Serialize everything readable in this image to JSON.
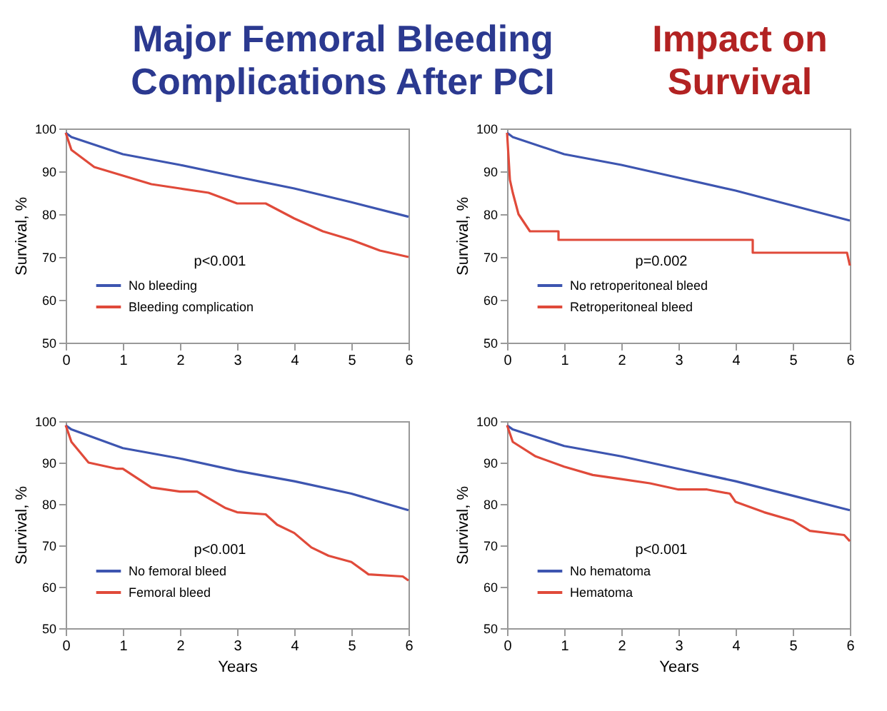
{
  "chart_data": [
    {
      "type": "line",
      "title": "Major Femoral Bleeding Complications After PCI",
      "ylabel": "Survival, %",
      "xlim": [
        0,
        6
      ],
      "xticks": [
        0,
        1,
        2,
        3,
        4,
        5,
        6
      ],
      "ylim": [
        50,
        100
      ],
      "yticks": [
        50,
        60,
        70,
        80,
        90,
        100
      ],
      "legend": "bottom left",
      "annotations": [
        "p<0.001"
      ],
      "series": [
        {
          "name": "No bleeding",
          "color": "#3d55b0",
          "x": [
            0,
            0.1,
            1,
            2,
            3,
            4,
            5,
            6
          ],
          "values": [
            99,
            98,
            94,
            91.5,
            88.7,
            86,
            82.8,
            79.4
          ]
        },
        {
          "name": "Bleeding complication",
          "color": "#e04a3a",
          "x": [
            0,
            0.1,
            0.5,
            1,
            1.5,
            2,
            2.5,
            3,
            3.5,
            4,
            4.5,
            5,
            5.5,
            6
          ],
          "values": [
            99,
            95,
            91,
            89,
            87,
            86,
            85,
            82.5,
            82.5,
            79,
            76,
            74,
            71.5,
            70
          ]
        }
      ]
    },
    {
      "type": "line",
      "title": "Impact on Survival",
      "ylabel": "Survival, %",
      "xlim": [
        0,
        6
      ],
      "xticks": [
        0,
        1,
        2,
        3,
        4,
        5,
        6
      ],
      "ylim": [
        50,
        100
      ],
      "yticks": [
        50,
        60,
        70,
        80,
        90,
        100
      ],
      "legend": "bottom left",
      "annotations": [
        "p=0.002"
      ],
      "series": [
        {
          "name": "No retroperitoneal bleed",
          "color": "#3d55b0",
          "x": [
            0,
            0.1,
            1,
            2,
            3,
            4,
            5,
            6
          ],
          "values": [
            99,
            98,
            94,
            91.5,
            88.5,
            85.5,
            82,
            78.5
          ]
        },
        {
          "name": "Retroperitoneal bleed",
          "color": "#e04a3a",
          "x": [
            0,
            0.05,
            0.1,
            0.2,
            0.4,
            0.9,
            0.9,
            4.3,
            4.3,
            5.95,
            6
          ],
          "values": [
            99,
            88,
            85,
            80,
            76,
            76,
            74,
            74,
            71,
            71,
            68
          ]
        }
      ]
    },
    {
      "type": "line",
      "xlabel": "Years",
      "ylabel": "Survival, %",
      "xlim": [
        0,
        6
      ],
      "xticks": [
        0,
        1,
        2,
        3,
        4,
        5,
        6
      ],
      "ylim": [
        50,
        100
      ],
      "yticks": [
        50,
        60,
        70,
        80,
        90,
        100
      ],
      "legend": "bottom left",
      "annotations": [
        "p<0.001"
      ],
      "series": [
        {
          "name": "No femoral bleed",
          "color": "#3d55b0",
          "x": [
            0,
            0.1,
            1,
            2,
            3,
            4,
            5,
            6
          ],
          "values": [
            99,
            98,
            93.5,
            91,
            88,
            85.5,
            82.5,
            78.5
          ]
        },
        {
          "name": "Femoral bleed",
          "color": "#e04a3a",
          "x": [
            0,
            0.1,
            0.4,
            0.9,
            1,
            1.5,
            2,
            2.3,
            2.8,
            3,
            3.5,
            3.7,
            4,
            4.3,
            4.6,
            5,
            5.3,
            5.9,
            6
          ],
          "values": [
            99,
            95,
            90,
            88.5,
            88.5,
            84,
            83,
            83,
            79,
            78,
            77.5,
            75,
            73,
            69.5,
            67.5,
            66,
            63,
            62.5,
            61.5
          ]
        }
      ]
    },
    {
      "type": "line",
      "xlabel": "Years",
      "ylabel": "Survival, %",
      "xlim": [
        0,
        6
      ],
      "xticks": [
        0,
        1,
        2,
        3,
        4,
        5,
        6
      ],
      "ylim": [
        50,
        100
      ],
      "yticks": [
        50,
        60,
        70,
        80,
        90,
        100
      ],
      "legend": "bottom left",
      "annotations": [
        "p<0.001"
      ],
      "series": [
        {
          "name": "No hematoma",
          "color": "#3d55b0",
          "x": [
            0,
            0.1,
            1,
            2,
            3,
            4,
            5,
            6
          ],
          "values": [
            99,
            98,
            94,
            91.5,
            88.5,
            85.5,
            82,
            78.5
          ]
        },
        {
          "name": "Hematoma",
          "color": "#e04a3a",
          "x": [
            0,
            0.1,
            0.5,
            1,
            1.5,
            2,
            2.5,
            3,
            3.5,
            3.9,
            4,
            4.5,
            5,
            5.3,
            5.9,
            6
          ],
          "values": [
            99,
            95,
            91.5,
            89,
            87,
            86,
            85,
            83.5,
            83.5,
            82.5,
            80.5,
            78,
            76,
            73.5,
            72.5,
            71
          ]
        }
      ]
    }
  ]
}
